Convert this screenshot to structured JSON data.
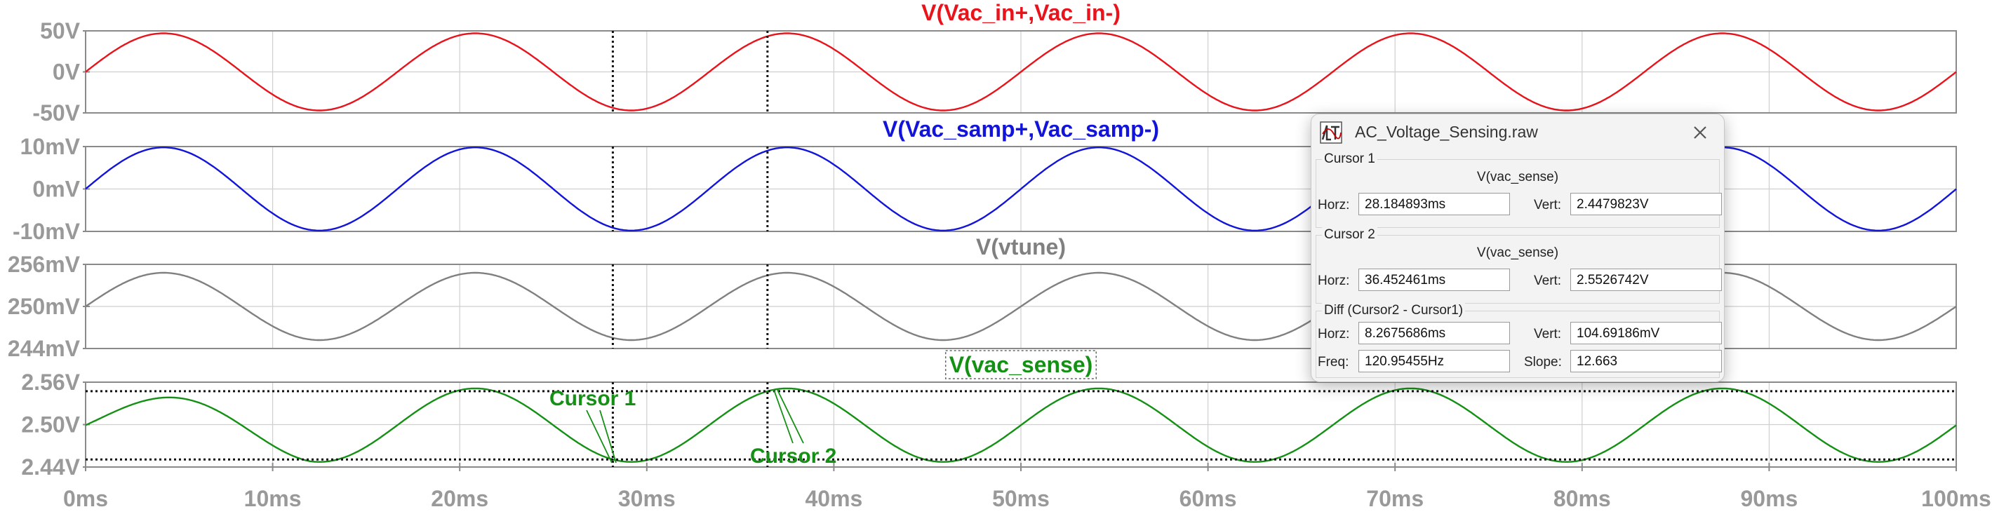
{
  "colors": {
    "trace1": "#e8131b",
    "trace2": "#1215d9",
    "trace3": "#808080",
    "trace4": "#149114",
    "axis_text": "#999999",
    "grid": "#cfcfcf"
  },
  "chart_data": {
    "type": "line",
    "x_unit": "ms",
    "xlim": [
      0,
      100
    ],
    "x_ticks": [
      "0ms",
      "10ms",
      "20ms",
      "30ms",
      "40ms",
      "50ms",
      "60ms",
      "70ms",
      "80ms",
      "90ms",
      "100ms"
    ],
    "cursor1_ms": 28.184893,
    "cursor2_ms": 36.452461,
    "panes": [
      {
        "title": "V(Vac_in+,Vac_in-)",
        "color_key": "trace1",
        "y_ticks": [
          "50V",
          "0V",
          "-50V"
        ],
        "ylim": [
          -50,
          50
        ],
        "series": {
          "kind": "sine",
          "amplitude": 47,
          "offset": 0,
          "freq_hz": 60
        }
      },
      {
        "title": "V(Vac_samp+,Vac_samp-)",
        "color_key": "trace2",
        "y_ticks": [
          "10mV",
          "0mV",
          "-10mV"
        ],
        "ylim": [
          -10,
          10
        ],
        "series": {
          "kind": "sine",
          "amplitude": 9.8,
          "offset": 0,
          "freq_hz": 60
        }
      },
      {
        "title": "V(vtune)",
        "color_key": "trace3",
        "y_ticks": [
          "256mV",
          "250mV",
          "244mV"
        ],
        "ylim": [
          244,
          256
        ],
        "series": {
          "kind": "sine",
          "amplitude": 4.8,
          "offset": 250,
          "freq_hz": 60
        }
      },
      {
        "title": "V(vac_sense)",
        "color_key": "trace4",
        "y_ticks": [
          "2.56V",
          "2.50V",
          "2.44V"
        ],
        "ylim": [
          2.44,
          2.56
        ],
        "series": {
          "kind": "sine_settling",
          "amplitude": 0.052,
          "offset": 2.4992,
          "freq_hz": 60,
          "start_amplitude": 0.032,
          "settle_ms": 12
        },
        "annotations": [
          "Cursor 1",
          "Cursor 2"
        ]
      }
    ]
  },
  "dialog": {
    "title": "AC_Voltage_Sensing.raw",
    "cursor1": {
      "label": "Cursor 1",
      "signal": "V(vac_sense)",
      "horz_label": "Horz:",
      "horz": "28.184893ms",
      "vert_label": "Vert:",
      "vert": "2.4479823V"
    },
    "cursor2": {
      "label": "Cursor 2",
      "signal": "V(vac_sense)",
      "horz_label": "Horz:",
      "horz": "36.452461ms",
      "vert_label": "Vert:",
      "vert": "2.5526742V"
    },
    "diff": {
      "label": "Diff (Cursor2 - Cursor1)",
      "horz_label": "Horz:",
      "horz": "8.2675686ms",
      "vert_label": "Vert:",
      "vert": "104.69186mV",
      "freq_label": "Freq:",
      "freq": "120.95455Hz",
      "slope_label": "Slope:",
      "slope": "12.663"
    }
  }
}
